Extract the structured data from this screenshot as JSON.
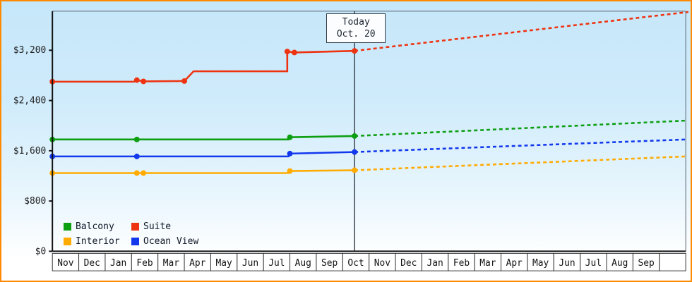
{
  "window": {
    "border_color": "#ff8a00",
    "background_top": "#c6e7fa",
    "background_bottom": "#ffffff"
  },
  "chart_data": {
    "type": "line",
    "title": "",
    "currency": "$",
    "grid": false,
    "legend_position": "bottom-left",
    "today_annotation": {
      "line1": "Today",
      "line2": "Oct. 20",
      "x_month_index": 11.45
    },
    "y_axis": {
      "tick_values": [
        0,
        800,
        1600,
        2400,
        3200
      ],
      "tick_labels": [
        "$0",
        "$800",
        "$1,600",
        "$2,400",
        "$3,200"
      ],
      "ylim": [
        0,
        3820
      ]
    },
    "x_axis": {
      "month_labels": [
        "Nov",
        "Dec",
        "Jan",
        "Feb",
        "Mar",
        "Apr",
        "May",
        "Jun",
        "Jul",
        "Aug",
        "Sep",
        "Oct",
        "Nov",
        "Dec",
        "Jan",
        "Feb",
        "Mar",
        "Apr",
        "May",
        "Jun",
        "Jul",
        "Aug",
        "Sep"
      ]
    },
    "legend": {
      "entries": [
        {
          "label": "Balcony",
          "color": "#0d9f12"
        },
        {
          "label": "Suite",
          "color": "#ee3311"
        },
        {
          "label": "Interior",
          "color": "#ffab00"
        },
        {
          "label": "Ocean View",
          "color": "#1238ee"
        }
      ]
    },
    "series": [
      {
        "name": "Balcony",
        "color": "#0d9f12",
        "solid": [
          [
            0,
            1780
          ],
          [
            8.95,
            1780
          ],
          [
            9.0,
            1815
          ],
          [
            11.45,
            1835
          ]
        ],
        "markers": [
          [
            0,
            1780
          ],
          [
            3.2,
            1780
          ],
          [
            9.0,
            1815
          ],
          [
            11.45,
            1835
          ]
        ],
        "dashed": [
          [
            11.45,
            1835
          ],
          [
            24.0,
            2080
          ]
        ]
      },
      {
        "name": "Suite",
        "color": "#ee3311",
        "solid": [
          [
            0,
            2700
          ],
          [
            3.1,
            2700
          ],
          [
            3.2,
            2725
          ],
          [
            3.45,
            2705
          ],
          [
            5.0,
            2710
          ],
          [
            5.35,
            2865
          ],
          [
            8.9,
            2865
          ],
          [
            8.9,
            3180
          ],
          [
            9.17,
            3165
          ],
          [
            11.45,
            3190
          ]
        ],
        "markers": [
          [
            0,
            2700
          ],
          [
            3.2,
            2725
          ],
          [
            3.45,
            2705
          ],
          [
            5.0,
            2710
          ],
          [
            8.9,
            3180
          ],
          [
            9.17,
            3165
          ],
          [
            11.45,
            3190
          ]
        ],
        "dashed": [
          [
            11.45,
            3190
          ],
          [
            24.1,
            3810
          ]
        ]
      },
      {
        "name": "Interior",
        "color": "#ffab00",
        "solid": [
          [
            0,
            1245
          ],
          [
            8.95,
            1245
          ],
          [
            9.0,
            1278
          ],
          [
            11.45,
            1290
          ]
        ],
        "markers": [
          [
            0,
            1245
          ],
          [
            3.2,
            1245
          ],
          [
            3.45,
            1245
          ],
          [
            9.0,
            1278
          ],
          [
            11.45,
            1290
          ]
        ],
        "dashed": [
          [
            11.45,
            1290
          ],
          [
            24.0,
            1510
          ]
        ]
      },
      {
        "name": "Ocean View",
        "color": "#1238ee",
        "solid": [
          [
            0,
            1510
          ],
          [
            8.95,
            1510
          ],
          [
            9.0,
            1555
          ],
          [
            11.45,
            1580
          ]
        ],
        "markers": [
          [
            0,
            1510
          ],
          [
            3.2,
            1510
          ],
          [
            9.0,
            1555
          ],
          [
            11.45,
            1580
          ]
        ],
        "dashed": [
          [
            11.45,
            1580
          ],
          [
            24.0,
            1780
          ]
        ]
      }
    ]
  }
}
